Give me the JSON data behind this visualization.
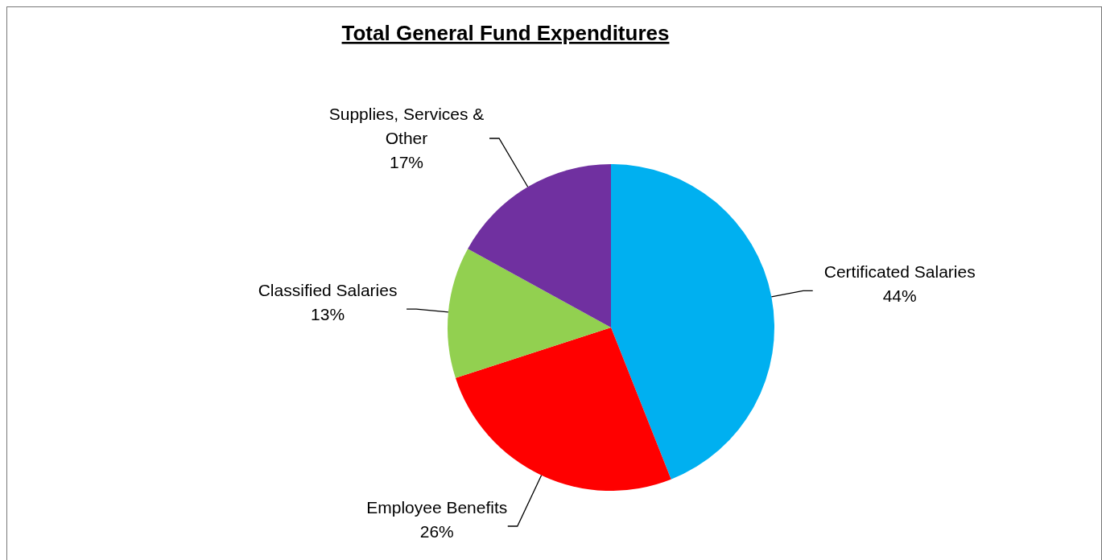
{
  "chart_data": {
    "type": "pie",
    "title": "Total General Fund Expenditures",
    "categories": [
      "Certificated Salaries",
      "Employee Benefits",
      "Classified Salaries",
      "Supplies, Services & Other"
    ],
    "values": [
      44,
      26,
      13,
      17
    ],
    "colors": [
      "#00b0f0",
      "#ff0000",
      "#92d050",
      "#7030a0"
    ],
    "value_labels": [
      "44%",
      "26%",
      "13%",
      "17%"
    ]
  }
}
